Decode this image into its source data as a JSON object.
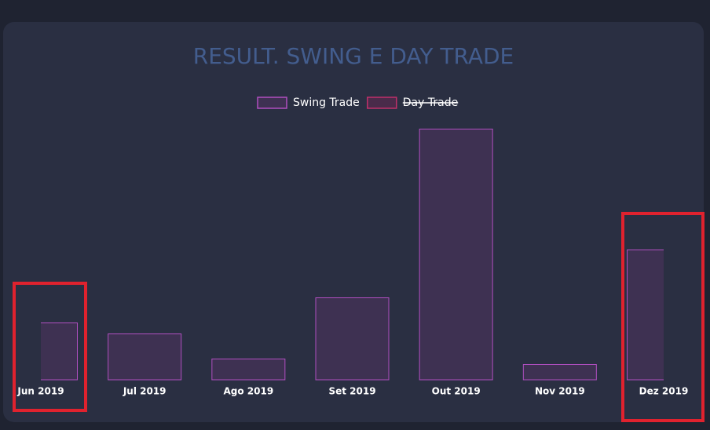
{
  "chart_data": {
    "type": "bar",
    "title": "RESULT. SWING E DAY TRADE",
    "categories": [
      "Jun 2019",
      "Jul 2019",
      "Ago 2019",
      "Set 2019",
      "Out 2019",
      "Nov 2019",
      "Dez 2019"
    ],
    "series": [
      {
        "name": "Swing Trade",
        "color": "#b04fc0",
        "values": [
          73,
          59,
          27,
          105,
          320,
          20,
          166
        ]
      },
      {
        "name": "Day Trade",
        "color": "#c0306a",
        "hidden": true,
        "values": [
          null,
          null,
          null,
          null,
          null,
          null,
          null
        ]
      }
    ],
    "ylim": [
      0,
      320
    ],
    "legend": "top"
  }
}
